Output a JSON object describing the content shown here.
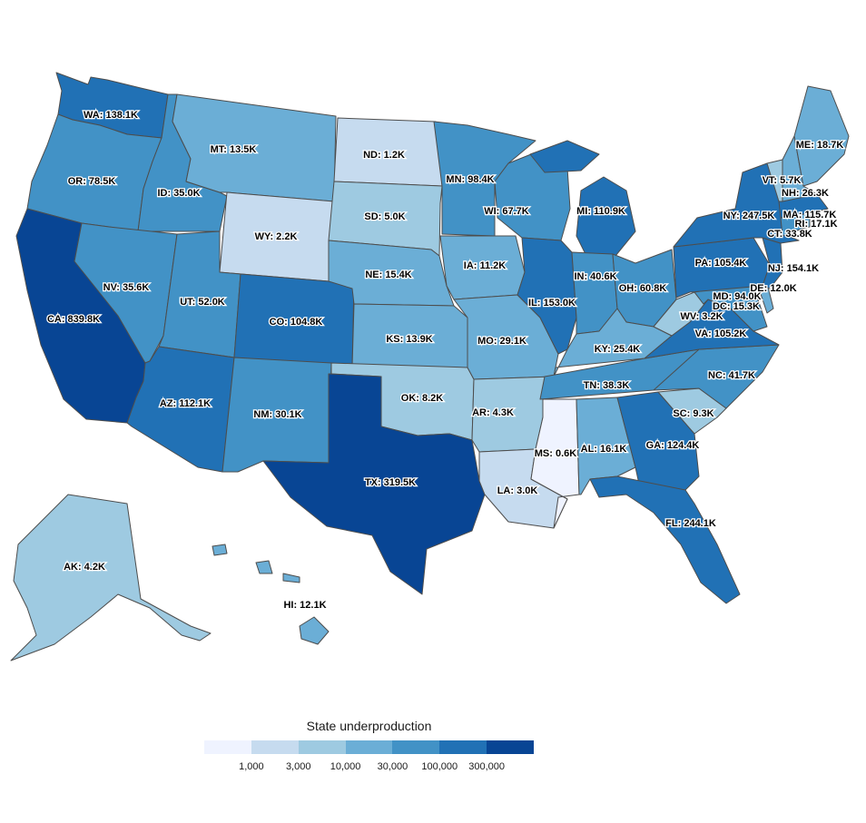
{
  "legend": {
    "title": "State underproduction",
    "ticks": [
      "1,000",
      "3,000",
      "10,000",
      "30,000",
      "100,000",
      "300,000"
    ],
    "colors": [
      "#eff3ff",
      "#c6dbef",
      "#9ecae1",
      "#6baed6",
      "#4292c6",
      "#2171b5",
      "#084594"
    ]
  },
  "chart_data": {
    "type": "choropleth",
    "legend_title": "State underproduction",
    "scale": "log",
    "breaks": [
      1000,
      3000,
      10000,
      30000,
      100000,
      300000
    ],
    "states": [
      {
        "code": "WA",
        "label": "WA: 138.1K",
        "value": 138100,
        "bin": 5
      },
      {
        "code": "OR",
        "label": "OR: 78.5K",
        "value": 78500,
        "bin": 4
      },
      {
        "code": "CA",
        "label": "CA: 839.8K",
        "value": 839800,
        "bin": 6
      },
      {
        "code": "ID",
        "label": "ID: 35.0K",
        "value": 35000,
        "bin": 4
      },
      {
        "code": "NV",
        "label": "NV: 35.6K",
        "value": 35600,
        "bin": 4
      },
      {
        "code": "MT",
        "label": "MT: 13.5K",
        "value": 13500,
        "bin": 3
      },
      {
        "code": "WY",
        "label": "WY: 2.2K",
        "value": 2200,
        "bin": 1
      },
      {
        "code": "UT",
        "label": "UT: 52.0K",
        "value": 52000,
        "bin": 4
      },
      {
        "code": "AZ",
        "label": "AZ: 112.1K",
        "value": 112100,
        "bin": 5
      },
      {
        "code": "CO",
        "label": "CO: 104.8K",
        "value": 104800,
        "bin": 5
      },
      {
        "code": "NM",
        "label": "NM: 30.1K",
        "value": 30100,
        "bin": 4
      },
      {
        "code": "ND",
        "label": "ND: 1.2K",
        "value": 1200,
        "bin": 1
      },
      {
        "code": "SD",
        "label": "SD: 5.0K",
        "value": 5000,
        "bin": 2
      },
      {
        "code": "NE",
        "label": "NE: 15.4K",
        "value": 15400,
        "bin": 3
      },
      {
        "code": "KS",
        "label": "KS: 13.9K",
        "value": 13900,
        "bin": 3
      },
      {
        "code": "OK",
        "label": "OK: 8.2K",
        "value": 8200,
        "bin": 2
      },
      {
        "code": "TX",
        "label": "TX: 319.5K",
        "value": 319500,
        "bin": 6
      },
      {
        "code": "MN",
        "label": "MN: 98.4K",
        "value": 98400,
        "bin": 4
      },
      {
        "code": "IA",
        "label": "IA: 11.2K",
        "value": 11200,
        "bin": 3
      },
      {
        "code": "MO",
        "label": "MO: 29.1K",
        "value": 29100,
        "bin": 3
      },
      {
        "code": "AR",
        "label": "AR: 4.3K",
        "value": 4300,
        "bin": 2
      },
      {
        "code": "LA",
        "label": "LA: 3.0K",
        "value": 3000,
        "bin": 1
      },
      {
        "code": "WI",
        "label": "WI: 67.7K",
        "value": 67700,
        "bin": 4
      },
      {
        "code": "IL",
        "label": "IL: 153.0K",
        "value": 153000,
        "bin": 5
      },
      {
        "code": "MI",
        "label": "MI: 110.9K",
        "value": 110900,
        "bin": 5
      },
      {
        "code": "IN",
        "label": "IN: 40.6K",
        "value": 40600,
        "bin": 4
      },
      {
        "code": "OH",
        "label": "OH: 60.8K",
        "value": 60800,
        "bin": 4
      },
      {
        "code": "KY",
        "label": "KY: 25.4K",
        "value": 25400,
        "bin": 3
      },
      {
        "code": "TN",
        "label": "TN: 38.3K",
        "value": 38300,
        "bin": 4
      },
      {
        "code": "MS",
        "label": "MS: 0.6K",
        "value": 600,
        "bin": 0
      },
      {
        "code": "AL",
        "label": "AL: 16.1K",
        "value": 16100,
        "bin": 3
      },
      {
        "code": "GA",
        "label": "GA: 124.4K",
        "value": 124400,
        "bin": 5
      },
      {
        "code": "FL",
        "label": "FL: 244.1K",
        "value": 244100,
        "bin": 5
      },
      {
        "code": "SC",
        "label": "SC: 9.3K",
        "value": 9300,
        "bin": 2
      },
      {
        "code": "NC",
        "label": "NC: 41.7K",
        "value": 41700,
        "bin": 4
      },
      {
        "code": "VA",
        "label": "VA: 105.2K",
        "value": 105200,
        "bin": 5
      },
      {
        "code": "WV",
        "label": "WV: 3.2K",
        "value": 3200,
        "bin": 2
      },
      {
        "code": "MD",
        "label": "MD: 94.0K",
        "value": 94000,
        "bin": 4
      },
      {
        "code": "DC",
        "label": "DC: 15.3K",
        "value": 15300,
        "bin": 3
      },
      {
        "code": "DE",
        "label": "DE: 12.0K",
        "value": 12000,
        "bin": 3
      },
      {
        "code": "PA",
        "label": "PA: 105.4K",
        "value": 105400,
        "bin": 5
      },
      {
        "code": "NJ",
        "label": "NJ: 154.1K",
        "value": 154100,
        "bin": 5
      },
      {
        "code": "NY",
        "label": "NY: 247.5K",
        "value": 247500,
        "bin": 5
      },
      {
        "code": "CT",
        "label": "CT: 33.8K",
        "value": 33800,
        "bin": 4
      },
      {
        "code": "RI",
        "label": "RI: 17.1K",
        "value": 17100,
        "bin": 3
      },
      {
        "code": "MA",
        "label": "MA: 115.7K",
        "value": 115700,
        "bin": 5
      },
      {
        "code": "VT",
        "label": "VT: 5.7K",
        "value": 5700,
        "bin": 2
      },
      {
        "code": "NH",
        "label": "NH: 26.3K",
        "value": 26300,
        "bin": 3
      },
      {
        "code": "ME",
        "label": "ME: 18.7K",
        "value": 18700,
        "bin": 3
      },
      {
        "code": "AK",
        "label": "AK: 4.2K",
        "value": 4200,
        "bin": 2
      },
      {
        "code": "HI",
        "label": "HI: 12.1K",
        "value": 12100,
        "bin": 3
      }
    ]
  }
}
